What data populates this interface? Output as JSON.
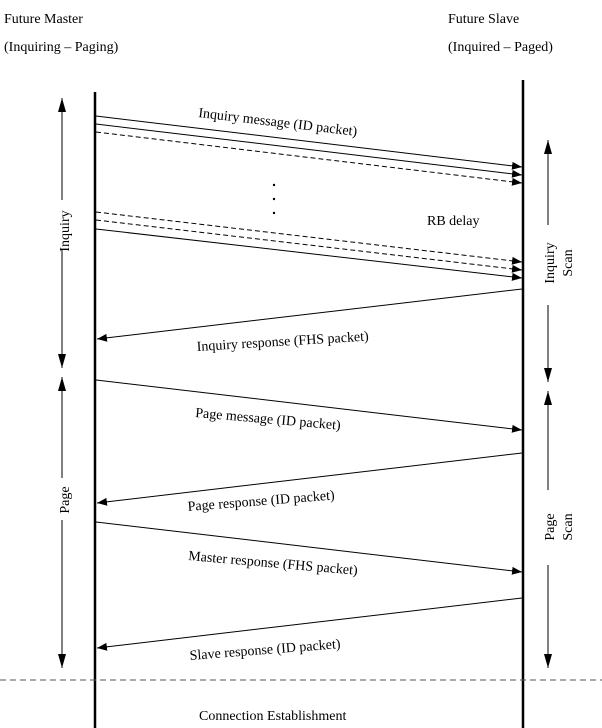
{
  "header": {
    "master_line1": "Future Master",
    "master_line2": "(Inquiring – Paging)",
    "slave_line1": "Future Slave",
    "slave_line2": "(Inquired – Paged)"
  },
  "phases": {
    "inquiry": "Inquiry",
    "page": "Page",
    "inquiry_scan_1": "Inquiry",
    "inquiry_scan_2": "Scan",
    "page_scan_1": "Page",
    "page_scan_2": "Scan"
  },
  "messages": {
    "inquiry_message": "Inquiry message (ID packet)",
    "ellipsis": ":",
    "rb_delay": "RB delay",
    "inquiry_response": "Inquiry response (FHS packet)",
    "page_message": "Page message (ID packet)",
    "page_response": "Page response (ID packet)",
    "master_response": "Master response (FHS packet)",
    "slave_response": "Slave response (ID packet)"
  },
  "footer": {
    "connection": "Connection Establishment"
  }
}
